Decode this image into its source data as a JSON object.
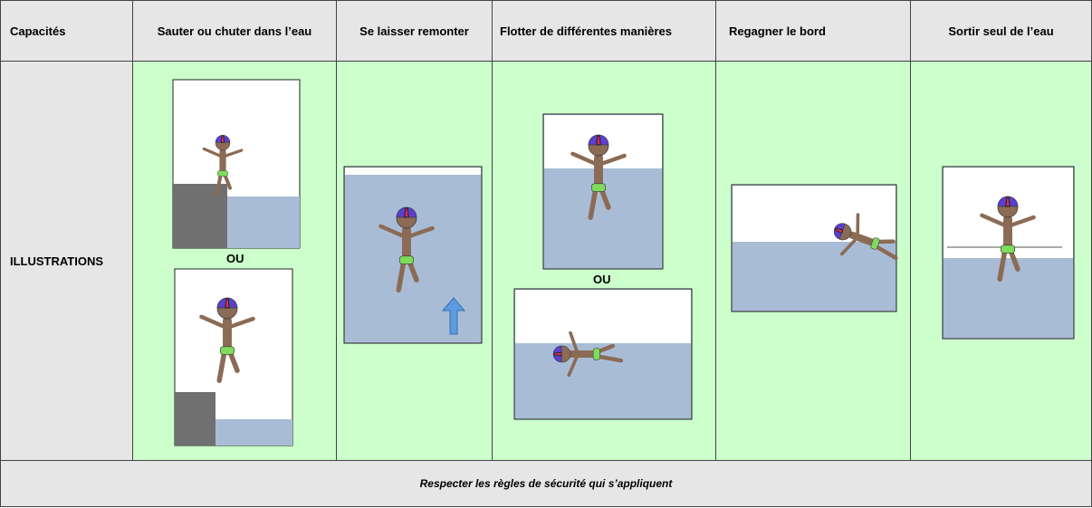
{
  "table": {
    "header": [
      "Capacités",
      "Sauter ou chuter dans l’eau",
      "Se laisser remonter",
      "Flotter de différentes manières",
      "Regagner le bord",
      "Sortir seul de l’eau"
    ],
    "row_label": "ILLUSTRATIONS",
    "or_labels": [
      "OU",
      "OU"
    ],
    "footer": "Respecter les règles de sécurité qui s’appliquent"
  }
}
